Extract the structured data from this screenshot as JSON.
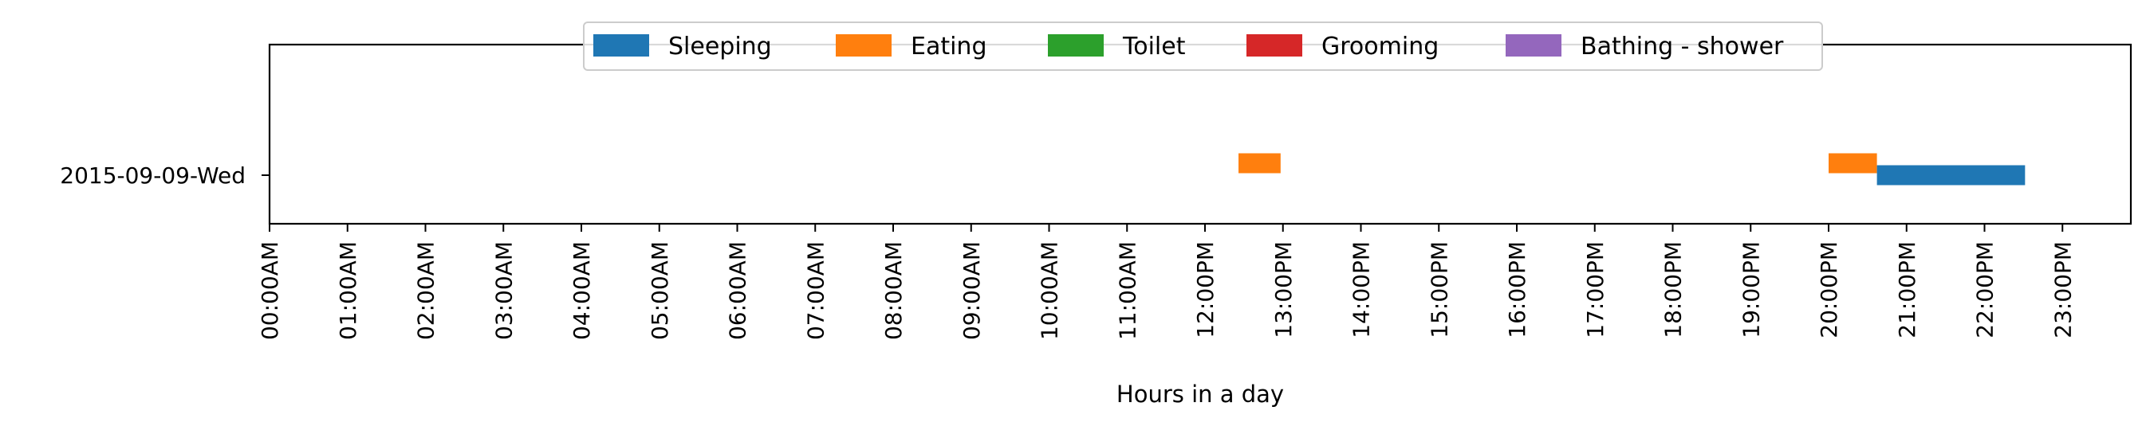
{
  "chart_data": {
    "type": "timeline",
    "xlabel": "Hours in a day",
    "ylabel": "",
    "xlim_hours": [
      0,
      24
    ],
    "x_tick_hours": [
      0,
      1,
      2,
      3,
      4,
      5,
      6,
      7,
      8,
      9,
      10,
      11,
      12,
      13,
      14,
      15,
      16,
      17,
      18,
      19,
      20,
      21,
      22,
      23
    ],
    "x_tick_labels": [
      "00:00AM",
      "01:00AM",
      "02:00AM",
      "03:00AM",
      "04:00AM",
      "05:00AM",
      "06:00AM",
      "07:00AM",
      "08:00AM",
      "09:00AM",
      "10:00AM",
      "11:00AM",
      "12:00PM",
      "13:00PM",
      "14:00PM",
      "15:00PM",
      "16:00PM",
      "17:00PM",
      "18:00PM",
      "19:00PM",
      "20:00PM",
      "21:00PM",
      "22:00PM",
      "23:00PM"
    ],
    "categories": [
      "2015-09-09-Wed"
    ],
    "legend_position": "top-center",
    "grid": false,
    "series": [
      {
        "name": "Sleeping",
        "color": "#1f77b4"
      },
      {
        "name": "Eating",
        "color": "#ff7f0e"
      },
      {
        "name": "Toilet",
        "color": "#2ca02c"
      },
      {
        "name": "Grooming",
        "color": "#d62728"
      },
      {
        "name": "Bathing - shower",
        "color": "#9467bd"
      }
    ],
    "intervals": [
      {
        "day": "2015-09-09-Wed",
        "activity": "Eating",
        "start_hour": 12.43,
        "end_hour": 12.97
      },
      {
        "day": "2015-09-09-Wed",
        "activity": "Eating",
        "start_hour": 20.0,
        "end_hour": 20.62
      },
      {
        "day": "2015-09-09-Wed",
        "activity": "Sleeping",
        "start_hour": 20.62,
        "end_hour": 22.52
      }
    ]
  }
}
